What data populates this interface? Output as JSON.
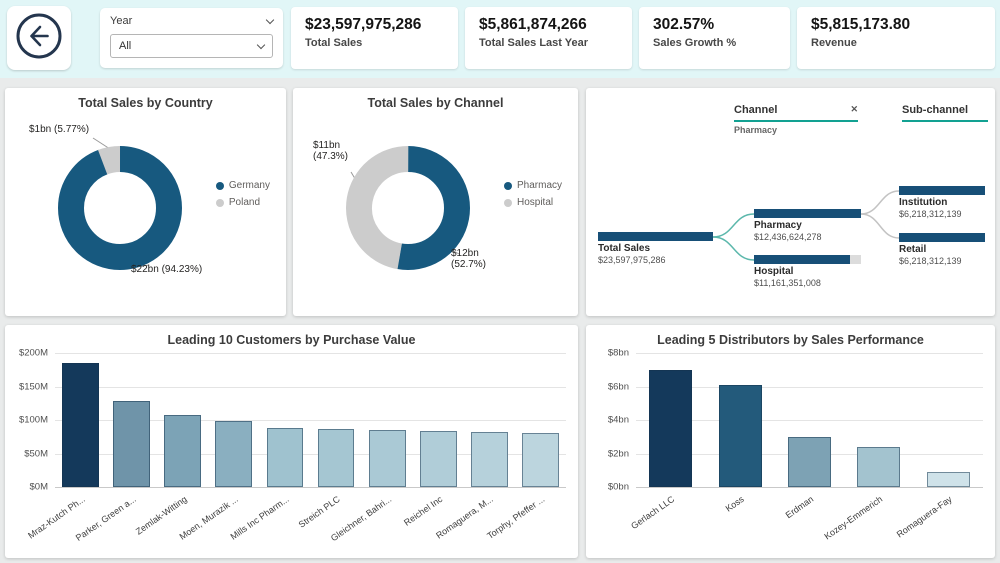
{
  "topbar": {
    "slicer": {
      "title": "Year",
      "value": "All"
    },
    "kpis": [
      {
        "value": "$23,597,975,286",
        "label": "Total Sales"
      },
      {
        "value": "$5,861,874,266",
        "label": "Total Sales Last Year"
      },
      {
        "value": "302.57%",
        "label": "Sales Growth %"
      },
      {
        "value": "$5,815,173.80",
        "label": "Revenue"
      }
    ]
  },
  "colors": {
    "accent_blue": "#17597f",
    "dark_navy": "#14395b",
    "slice_gray": "#cccccc",
    "teal_accent": "#12a192",
    "topbar_bg": "#e1f6f7"
  },
  "chart_data": [
    {
      "id": "country_donut",
      "type": "pie",
      "title": "Total Sales by Country",
      "legend_position": "right",
      "slices": [
        {
          "label": "Germany",
          "value": "$22bn",
          "pct": 94.23,
          "color": "#17597f",
          "callout": "$22bn (94.23%)"
        },
        {
          "label": "Poland",
          "value": "$1bn",
          "pct": 5.77,
          "color": "#cccccc",
          "callout": "$1bn (5.77%)"
        }
      ]
    },
    {
      "id": "channel_donut",
      "type": "pie",
      "title": "Total Sales by Channel",
      "legend_position": "right",
      "slices": [
        {
          "label": "Pharmacy",
          "value": "$12bn",
          "pct": 52.7,
          "color": "#17597f",
          "callout_line1": "$12bn",
          "callout_line2": "(52.7%)"
        },
        {
          "label": "Hospital",
          "value": "$11bn",
          "pct": 47.3,
          "color": "#cccccc",
          "callout_line1": "$11bn",
          "callout_line2": "(47.3%)"
        }
      ]
    },
    {
      "id": "decomposition_tree",
      "type": "tree",
      "headers": [
        {
          "label": "Channel",
          "selected_value": "Pharmacy",
          "closable": true
        },
        {
          "label": "Sub-channel",
          "closable": false
        }
      ],
      "root": {
        "label": "Total Sales",
        "value": "$23,597,975,286",
        "fraction": 1
      },
      "level1": [
        {
          "label": "Pharmacy",
          "value": "$12,436,624,278",
          "fraction": 1
        },
        {
          "label": "Hospital",
          "value": "$11,161,351,008",
          "fraction": 0.897
        }
      ],
      "level2": [
        {
          "label": "Institution",
          "value": "$6,218,312,139",
          "fraction": 1
        },
        {
          "label": "Retail",
          "value": "$6,218,312,139",
          "fraction": 1
        }
      ]
    },
    {
      "id": "customers_bar",
      "type": "bar",
      "title": "Leading 10 Customers by Purchase Value",
      "unit": "$M",
      "ylim": [
        0,
        200
      ],
      "yticks_top_down": [
        "$200M",
        "$150M",
        "$100M",
        "$50M",
        "$0M"
      ],
      "categories": [
        "Mraz-Kutch Ph...",
        "Parker, Green a...",
        "Zemlak-Witting",
        "Moen, Murazik ...",
        "Mills Inc Pharm...",
        "Streich PLC",
        "Gleichner, Bahri...",
        "Reichel Inc",
        "Romaguera, M...",
        "Torphy, Pfeffer ..."
      ],
      "values": [
        185,
        128,
        108,
        98,
        88,
        86,
        85,
        84,
        82,
        80
      ],
      "bar_colors": [
        "#14395b",
        "#6f94a9",
        "#7ca3b6",
        "#8aafc0",
        "#9fc2cf",
        "#a5c6d2",
        "#aac9d5",
        "#b0cdd8",
        "#b6d1db",
        "#bcd5de"
      ]
    },
    {
      "id": "distributors_bar",
      "type": "bar",
      "title": "Leading 5 Distributors by Sales Performance",
      "unit": "$bn",
      "ylim": [
        0,
        8
      ],
      "yticks_top_down": [
        "$8bn",
        "$6bn",
        "$4bn",
        "$2bn",
        "$0bn"
      ],
      "categories": [
        "Gerlach LLC",
        "Koss",
        "Erdman",
        "Kozey-Emmerich",
        "Romaguera-Fay"
      ],
      "values": [
        7,
        6.1,
        3,
        2.4,
        0.9
      ],
      "bar_colors": [
        "#14395b",
        "#235a7b",
        "#7da2b4",
        "#a3c3cf",
        "#cfe2e9"
      ]
    }
  ]
}
